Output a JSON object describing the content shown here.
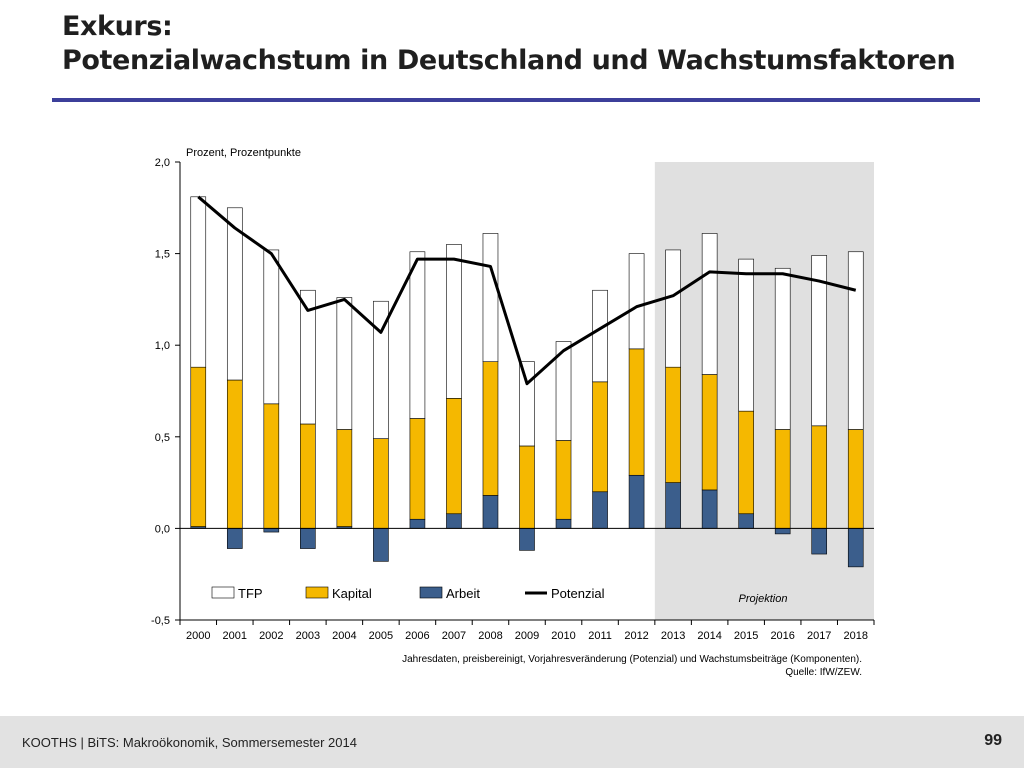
{
  "slide": {
    "title_line1": "Exkurs:",
    "title_line2": "Potenzialwachstum in Deutschland und Wachstumsfaktoren",
    "footer": "KOOTHS | BiTS: Makroökonomik, Sommersemester 2014",
    "page_number": "99",
    "note_line1": "Jahresdaten,  preisbereinigt, Vorjahresveränderung (Potenzial) und Wachstumsbeiträge (Komponenten).",
    "note_line2": "Quelle: IfW/ZEW."
  },
  "chart_data": {
    "type": "bar",
    "stacked": true,
    "unit_label": "Prozent, Prozentpunkte",
    "categories": [
      "2000",
      "2001",
      "2002",
      "2003",
      "2004",
      "2005",
      "2006",
      "2007",
      "2008",
      "2009",
      "2010",
      "2011",
      "2012",
      "2013",
      "2014",
      "2015",
      "2016",
      "2017",
      "2018"
    ],
    "series": [
      {
        "name": "Arbeit",
        "color": "#3b5e8c",
        "values": [
          0.01,
          -0.11,
          -0.02,
          -0.11,
          0.01,
          -0.18,
          0.05,
          0.08,
          0.18,
          -0.12,
          0.05,
          0.2,
          0.29,
          0.25,
          0.21,
          0.08,
          -0.03,
          -0.14,
          -0.21
        ]
      },
      {
        "name": "Kapital",
        "color": "#f5b800",
        "values": [
          0.87,
          0.81,
          0.68,
          0.57,
          0.53,
          0.49,
          0.55,
          0.63,
          0.73,
          0.45,
          0.43,
          0.6,
          0.69,
          0.63,
          0.63,
          0.56,
          0.54,
          0.56,
          0.54
        ]
      },
      {
        "name": "TFP",
        "color": "#ffffff",
        "values": [
          0.93,
          0.94,
          0.84,
          0.73,
          0.72,
          0.75,
          0.91,
          0.84,
          0.7,
          0.46,
          0.54,
          0.5,
          0.52,
          0.64,
          0.77,
          0.83,
          0.88,
          0.93,
          0.97
        ]
      },
      {
        "name": "Potenzial",
        "type": "line",
        "color": "#000000",
        "values": [
          1.81,
          1.64,
          1.5,
          1.19,
          1.25,
          1.07,
          1.47,
          1.47,
          1.43,
          0.79,
          0.97,
          1.09,
          1.21,
          1.27,
          1.4,
          1.39,
          1.39,
          1.35,
          1.3
        ]
      }
    ],
    "ylim": [
      -0.5,
      2.0
    ],
    "yticks": [
      "2,0",
      "1,5",
      "1,0",
      "0,5",
      "0,0",
      "-0,5"
    ],
    "ytick_values": [
      2.0,
      1.5,
      1.0,
      0.5,
      0.0,
      -0.5
    ],
    "grid": false,
    "legend": [
      "TFP",
      "Kapital",
      "Arbeit",
      "Potenzial"
    ],
    "legend_position": "bottom-left",
    "projection_label": "Projektion",
    "projection_range": [
      "2013",
      "2018"
    ]
  }
}
